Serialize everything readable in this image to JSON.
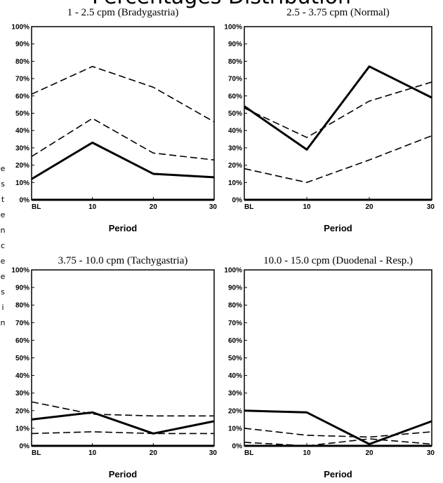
{
  "figure": {
    "top_title": "Percentages Distribution",
    "side_letters": [
      "e",
      "s",
      "t",
      "e",
      "n",
      "c",
      "e",
      "e",
      "s",
      "i",
      "n"
    ]
  },
  "chart_data": [
    {
      "type": "line",
      "title": "1 - 2.5 cpm (Bradygastria)",
      "xlabel": "Period",
      "ylabel": "",
      "categories": [
        "BL",
        "10",
        "20",
        "30"
      ],
      "ylim": [
        0,
        100
      ],
      "yticks": [
        "0%",
        "10%",
        "20%",
        "30%",
        "40%",
        "50%",
        "60%",
        "70%",
        "80%",
        "90%",
        "100%"
      ],
      "series": [
        {
          "style": "solid",
          "values": [
            12,
            33,
            15,
            13
          ]
        },
        {
          "style": "dashed",
          "values": [
            25,
            47,
            27,
            23
          ]
        },
        {
          "style": "dashed",
          "values": [
            61,
            77,
            65,
            45
          ]
        }
      ]
    },
    {
      "type": "line",
      "title": "2.5 - 3.75 cpm (Normal)",
      "xlabel": "Period",
      "ylabel": "",
      "categories": [
        "BL",
        "10",
        "20",
        "30"
      ],
      "ylim": [
        0,
        100
      ],
      "yticks": [
        "0%",
        "10%",
        "20%",
        "30%",
        "40%",
        "50%",
        "60%",
        "70%",
        "80%",
        "90%",
        "100%"
      ],
      "series": [
        {
          "style": "solid",
          "values": [
            54,
            29,
            77,
            59
          ]
        },
        {
          "style": "dashed",
          "values": [
            53,
            36,
            57,
            68
          ]
        },
        {
          "style": "dashed",
          "values": [
            18,
            10,
            23,
            37
          ]
        }
      ]
    },
    {
      "type": "line",
      "title": "3.75 - 10.0 cpm (Tachygastria)",
      "xlabel": "Period",
      "ylabel": "",
      "categories": [
        "BL",
        "10",
        "20",
        "30"
      ],
      "ylim": [
        0,
        100
      ],
      "yticks": [
        "0%",
        "10%",
        "20%",
        "30%",
        "40%",
        "50%",
        "60%",
        "70%",
        "80%",
        "90%",
        "100%"
      ],
      "series": [
        {
          "style": "solid",
          "values": [
            15,
            19,
            7,
            14
          ]
        },
        {
          "style": "dashed",
          "values": [
            25,
            18,
            17,
            17
          ]
        },
        {
          "style": "dashed",
          "values": [
            7,
            8,
            7,
            7
          ]
        }
      ]
    },
    {
      "type": "line",
      "title": "10.0 - 15.0 cpm (Duodenal - Resp.)",
      "xlabel": "Period",
      "ylabel": "",
      "categories": [
        "BL",
        "10",
        "20",
        "30"
      ],
      "ylim": [
        0,
        100
      ],
      "yticks": [
        "0%",
        "10%",
        "20%",
        "30%",
        "40%",
        "50%",
        "60%",
        "70%",
        "80%",
        "90%",
        "100%"
      ],
      "series": [
        {
          "style": "solid",
          "values": [
            20,
            19,
            1,
            14
          ]
        },
        {
          "style": "dashed",
          "values": [
            10,
            6,
            5,
            8
          ]
        },
        {
          "style": "dashed",
          "values": [
            2,
            0,
            4,
            1
          ]
        }
      ]
    }
  ]
}
